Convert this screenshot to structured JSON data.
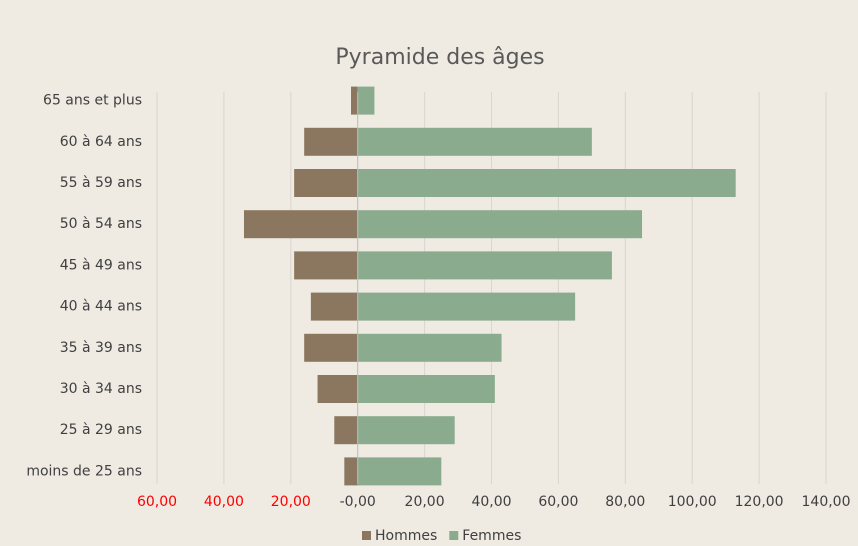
{
  "chart_data": {
    "type": "bar",
    "orientation": "horizontal",
    "stacked": true,
    "title": "Pyramide des âges",
    "categories": [
      "65 ans et plus",
      "60 à 64 ans",
      "55 à 59 ans",
      "50 à 54 ans",
      "45 à 49 ans",
      "40 à 44 ans",
      "35 à 39 ans",
      "30 à 34 ans",
      "25 à 29 ans",
      "moins de 25 ans"
    ],
    "series": [
      {
        "name": "Hommes",
        "color": "#8b7760",
        "values": [
          -2,
          -16,
          -19,
          -34,
          -19,
          -14,
          -16,
          -12,
          -7,
          -4
        ]
      },
      {
        "name": "Femmes",
        "color": "#8aab8e",
        "values": [
          5,
          70,
          113,
          85,
          76,
          65,
          43,
          41,
          29,
          25
        ]
      }
    ],
    "xlim": [
      -60,
      140
    ],
    "xticks": [
      {
        "value": -60,
        "label": "60,00"
      },
      {
        "value": -40,
        "label": "40,00"
      },
      {
        "value": -20,
        "label": "20,00"
      },
      {
        "value": 0,
        "label": "-0,00"
      },
      {
        "value": 20,
        "label": "20,00"
      },
      {
        "value": 40,
        "label": "40,00"
      },
      {
        "value": 60,
        "label": "60,00"
      },
      {
        "value": 80,
        "label": "80,00"
      },
      {
        "value": 100,
        "label": "100,00"
      },
      {
        "value": 120,
        "label": "120,00"
      },
      {
        "value": 140,
        "label": "140,00"
      }
    ],
    "negative_tick_color": "#ff0000",
    "grid": true,
    "legend": "bottom"
  }
}
